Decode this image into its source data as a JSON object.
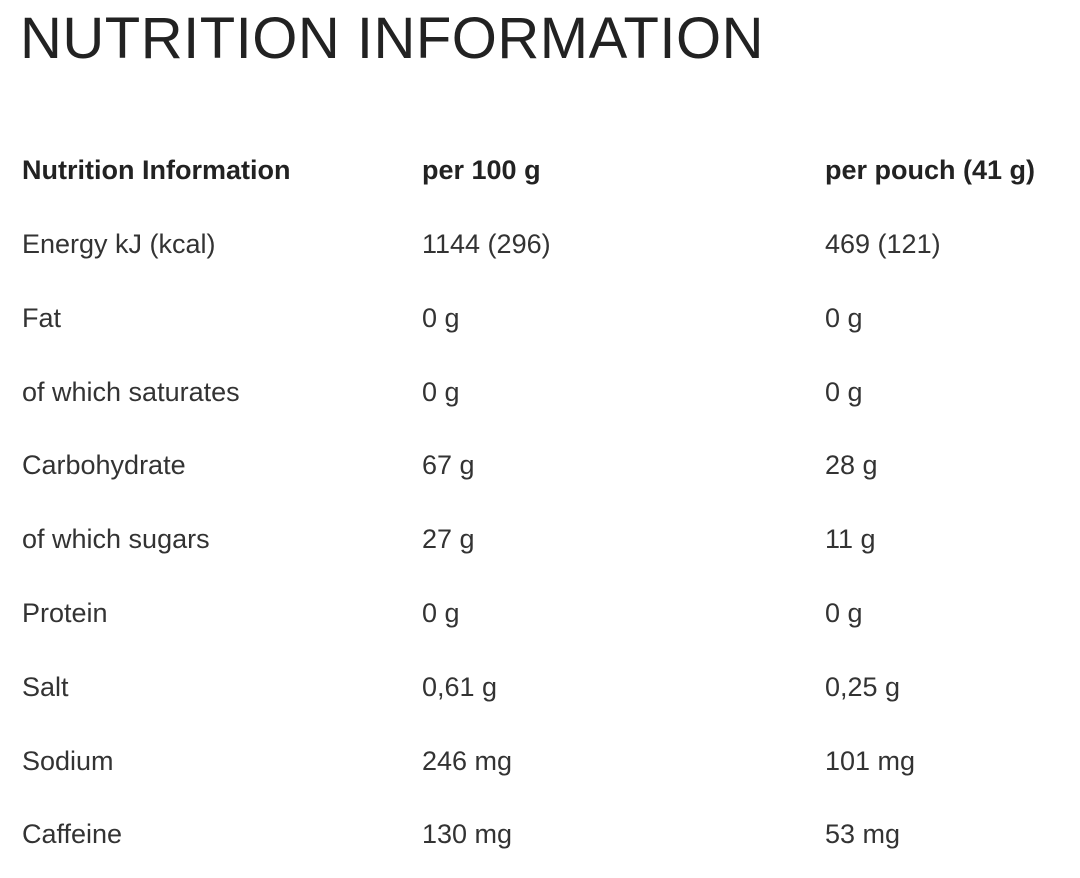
{
  "title": "NUTRITION INFORMATION",
  "table": {
    "header": [
      "Nutrition Information",
      "per 100 g",
      "per pouch (41 g)"
    ],
    "rows": [
      [
        "Energy kJ (kcal)",
        "1144 (296)",
        "469 (121)"
      ],
      [
        "Fat",
        "0 g",
        "0 g"
      ],
      [
        "of which saturates",
        "0 g",
        "0 g"
      ],
      [
        "Carbohydrate",
        "67 g",
        "28 g"
      ],
      [
        "of which sugars",
        "27 g",
        "11 g"
      ],
      [
        "Protein",
        "0 g",
        "0 g"
      ],
      [
        "Salt",
        "0,61 g",
        "0,25 g"
      ],
      [
        "Sodium",
        "246 mg",
        "101 mg"
      ],
      [
        "Caffeine",
        "130 mg",
        "53 mg"
      ]
    ]
  }
}
